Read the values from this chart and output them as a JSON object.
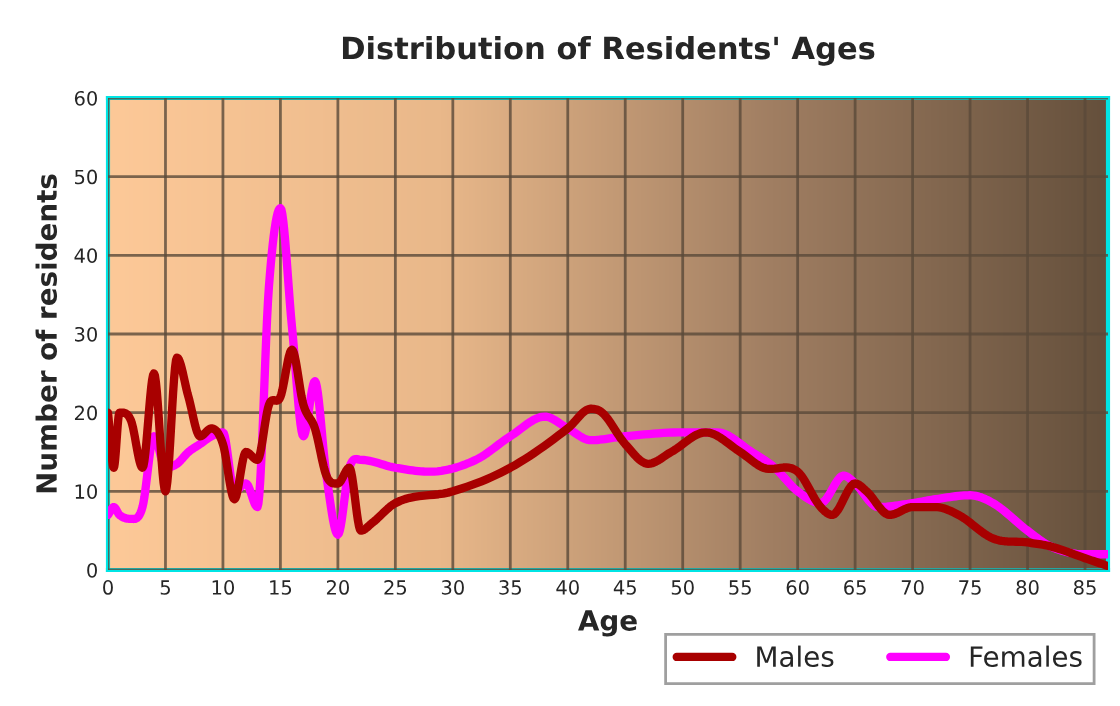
{
  "chart_data": {
    "type": "line",
    "title": "Distribution of Residents' Ages",
    "xlabel": "Age",
    "ylabel": "Number of residents",
    "xlim": [
      0,
      87
    ],
    "xticks": [
      0,
      5,
      10,
      15,
      20,
      25,
      30,
      35,
      40,
      45,
      50,
      55,
      60,
      65,
      70,
      75,
      80,
      85
    ],
    "ylim": [
      0,
      60
    ],
    "yticks": [
      0,
      10,
      20,
      30,
      40,
      50,
      60
    ],
    "grid": true,
    "legend": "bottom right",
    "series": [
      {
        "name": "Males",
        "color": "#a80000",
        "x": [
          0,
          0.5,
          1,
          2,
          3,
          4,
          5,
          6,
          7,
          8,
          9,
          10,
          11,
          12,
          13,
          14,
          15,
          16,
          17,
          18,
          19,
          20,
          21,
          22,
          23,
          25,
          30,
          35,
          40,
          42,
          43,
          45,
          47,
          49,
          52,
          55,
          57,
          60,
          62,
          63,
          65,
          66,
          68,
          70,
          72,
          74,
          77,
          80,
          82,
          85,
          87
        ],
        "values": [
          20,
          13,
          20,
          19,
          13,
          25,
          10,
          27,
          22,
          17,
          18,
          16,
          9,
          15,
          14,
          21,
          22,
          28,
          21,
          18,
          12,
          11,
          13,
          5,
          6,
          8.5,
          10,
          13,
          18,
          20.5,
          20,
          16,
          13.5,
          15,
          17.5,
          15,
          13,
          12.5,
          8,
          7,
          11,
          10,
          7,
          8,
          8,
          7,
          4,
          3.5,
          3,
          1.5,
          0.5
        ]
      },
      {
        "name": "Females",
        "color": "#ff00ff",
        "x": [
          0,
          0.5,
          1,
          2,
          3,
          4,
          5,
          6,
          7,
          8,
          9,
          10,
          11,
          12,
          13,
          14,
          15,
          16,
          17,
          18,
          19,
          20,
          21,
          22,
          25,
          28,
          32,
          35,
          38,
          40,
          42,
          45,
          50,
          53,
          56,
          58,
          60,
          62,
          64,
          65,
          67,
          70,
          72,
          75,
          77,
          80,
          82,
          85,
          87
        ],
        "values": [
          7,
          8,
          7,
          6.5,
          8,
          17,
          13,
          13.5,
          15,
          16,
          17,
          17.5,
          10,
          11,
          8,
          36,
          46,
          31,
          17,
          24,
          12,
          4.5,
          13,
          14,
          13,
          12.5,
          14,
          17,
          19.5,
          18,
          16.5,
          17,
          17.5,
          17.5,
          15,
          13,
          10,
          8.5,
          12,
          11,
          8,
          8.5,
          9,
          9.5,
          8.5,
          5,
          3,
          2,
          2
        ]
      }
    ]
  }
}
